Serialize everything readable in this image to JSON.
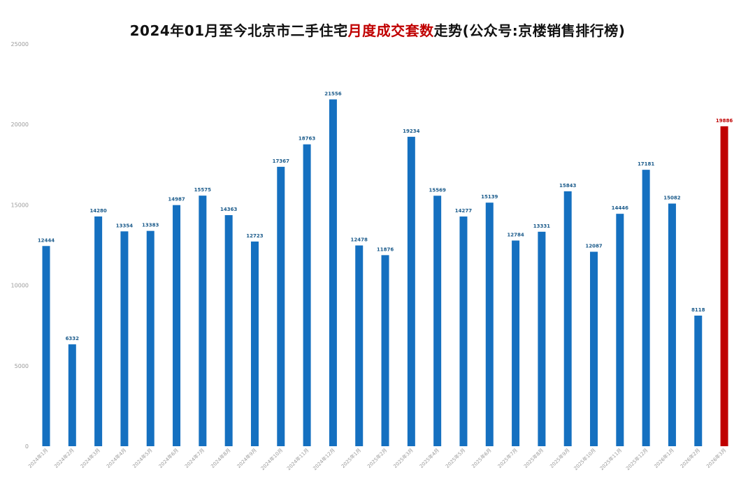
{
  "title": {
    "prefix": "2024年01月至今北京市二手住宅",
    "highlight": "月度成交套数",
    "suffix": "走势(公众号:京楼销售排行榜)"
  },
  "colors": {
    "bar": "#1570c0",
    "bar_highlight": "#c00000",
    "label": "#1a5a8a",
    "label_highlight": "#c00000",
    "axis_text": "#9a9a9a",
    "title_highlight": "#c00000"
  },
  "chart_data": {
    "type": "bar",
    "title": "2024年01月至今北京市二手住宅月度成交套数走势(公众号:京楼销售排行榜)",
    "categories": [
      "2024年1月",
      "2024年2月",
      "2024年3月",
      "2024年4月",
      "2024年5月",
      "2024年6月",
      "2024年7月",
      "2024年8月",
      "2024年9月",
      "2024年10月",
      "2024年11月",
      "2024年12月",
      "2025年1月",
      "2025年2月",
      "2025年3月",
      "2025年4月",
      "2025年5月",
      "2025年6月",
      "2025年7月",
      "2025年8月",
      "2025年9月",
      "2025年10月",
      "2025年11月",
      "2025年12月",
      "2026年1月",
      "2026年2月",
      "2026年3月"
    ],
    "values": [
      12444,
      6332,
      14280,
      13354,
      13383,
      14987,
      15575,
      14363,
      12723,
      17367,
      18763,
      21556,
      12478,
      11876,
      19234,
      15569,
      14277,
      15139,
      12784,
      13331,
      15843,
      12087,
      14446,
      17181,
      15082,
      8118,
      19886
    ],
    "highlight_index": 26,
    "yticks": [
      0,
      5000,
      10000,
      15000,
      20000,
      25000
    ],
    "ylim": [
      0,
      25000
    ],
    "grid": false,
    "legend": "none"
  }
}
